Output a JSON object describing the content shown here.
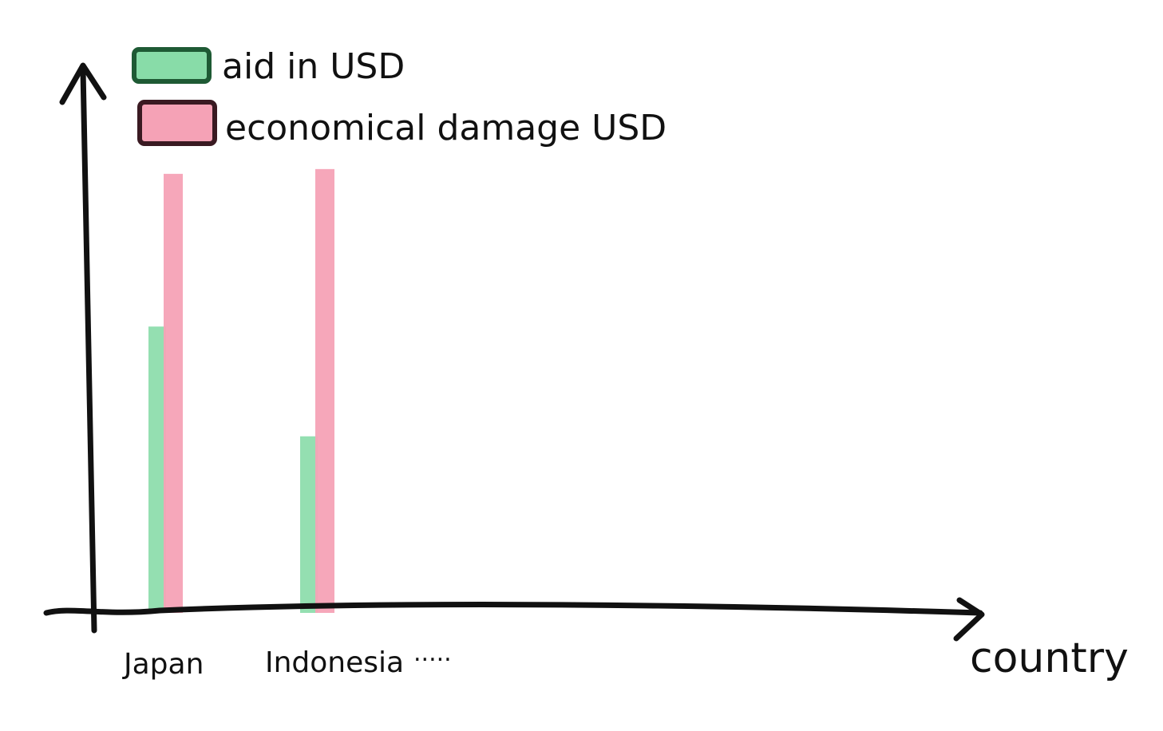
{
  "chart_data": {
    "type": "bar",
    "categories": [
      "Japan",
      "Indonesia",
      "....."
    ],
    "series": [
      {
        "name": "aid in USD",
        "values": [
          0.6,
          0.37,
          null
        ],
        "color": "#88dca8",
        "stroke": "#1e5a34"
      },
      {
        "name": "economical damage USD",
        "values": [
          0.92,
          0.93,
          null
        ],
        "color": "#f5a2b6",
        "stroke": "#3a1a22"
      }
    ],
    "xlabel": "country",
    "ylabel": "",
    "ylim": [
      0,
      1
    ],
    "grid": false,
    "legend_position": "top-left"
  }
}
